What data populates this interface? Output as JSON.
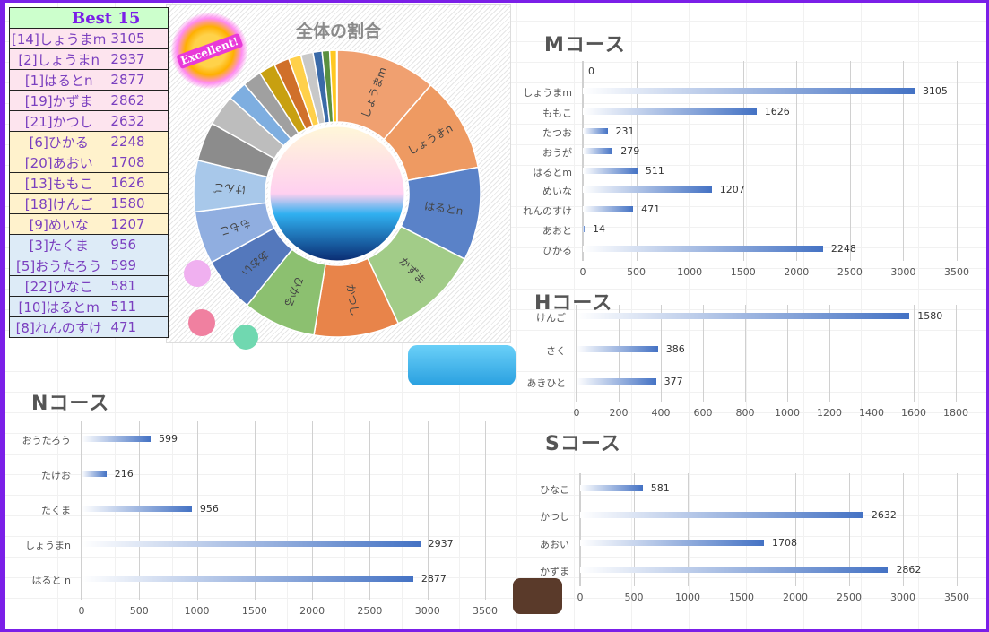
{
  "best": {
    "title": "Best 15",
    "rows": [
      {
        "name": "[14]しょうまm",
        "score": "3105"
      },
      {
        "name": "[2]しょうまn",
        "score": "2937"
      },
      {
        "name": "[1]はるとn",
        "score": "2877"
      },
      {
        "name": "[19]かずま",
        "score": "2862"
      },
      {
        "name": "[21]かつし",
        "score": "2632"
      },
      {
        "name": "[6]ひかる",
        "score": "2248"
      },
      {
        "name": "[20]あおい",
        "score": "1708"
      },
      {
        "name": "[13]ももこ",
        "score": "1626"
      },
      {
        "name": "[18]けんご",
        "score": "1580"
      },
      {
        "name": "[9]めいな",
        "score": "1207"
      },
      {
        "name": "[3]たくま",
        "score": "956"
      },
      {
        "name": "[5]おうたろう",
        "score": "599"
      },
      {
        "name": "[22]ひなこ",
        "score": "581"
      },
      {
        "name": "[10]はるとm",
        "score": "511"
      },
      {
        "name": "[8]れんのすけ",
        "score": "471"
      }
    ],
    "row_colors": [
      "#fde4ee",
      "#fde4ee",
      "#fde4ee",
      "#fde4ee",
      "#fde4ee",
      "#fff2cc",
      "#fff2cc",
      "#fff2cc",
      "#fff2cc",
      "#fff2cc",
      "#ddebf7",
      "#ddebf7",
      "#ddebf7",
      "#ddebf7",
      "#ddebf7"
    ]
  },
  "badge_text": "Excellent!",
  "chart_data": [
    {
      "type": "pie",
      "title": "全体の割合",
      "donut": true,
      "slices": [
        {
          "label": "しょうまm",
          "value": 3105,
          "color": "#f0a070"
        },
        {
          "label": "しょうまn",
          "value": 2937,
          "color": "#ee9a62"
        },
        {
          "label": "はるとn",
          "value": 2877,
          "color": "#5a82c8"
        },
        {
          "label": "かずま",
          "value": 2862,
          "color": "#a2cc88"
        },
        {
          "label": "かつし",
          "value": 2632,
          "color": "#e8844a"
        },
        {
          "label": "ひかる",
          "value": 2248,
          "color": "#8cc070"
        },
        {
          "label": "あおい",
          "value": 1708,
          "color": "#5478bc"
        },
        {
          "label": "ももこ",
          "value": 1626,
          "color": "#90aee0"
        },
        {
          "label": "けんご",
          "value": 1580,
          "color": "#a8c8ea"
        },
        {
          "label": "",
          "value": 1207,
          "color": "#8c8c8c"
        },
        {
          "label": "",
          "value": 956,
          "color": "#bdbdbd"
        },
        {
          "label": "",
          "value": 599,
          "color": "#7eaee0"
        },
        {
          "label": "",
          "value": 581,
          "color": "#a0a0a0"
        },
        {
          "label": "",
          "value": 511,
          "color": "#c8a010"
        },
        {
          "label": "",
          "value": 471,
          "color": "#d0702a"
        },
        {
          "label": "",
          "value": 386,
          "color": "#ffd04a"
        },
        {
          "label": "",
          "value": 377,
          "color": "#c8c8c8"
        },
        {
          "label": "",
          "value": 279,
          "color": "#3a6aa8"
        },
        {
          "label": "",
          "value": 231,
          "color": "#5a9040"
        },
        {
          "label": "",
          "value": 216,
          "color": "#ffc820"
        },
        {
          "label": "",
          "value": 14,
          "color": "#aaaaaa"
        }
      ]
    },
    {
      "type": "bar",
      "orientation": "horizontal",
      "title": "Mコース",
      "categories": [
        "",
        "しょうまm",
        "ももこ",
        "たつお",
        "おうが",
        "はるとm",
        "めいな",
        "れんのすけ",
        "あおと",
        "ひかる"
      ],
      "values": [
        0,
        3105,
        1626,
        231,
        279,
        511,
        1207,
        471,
        14,
        2248
      ],
      "xlim": [
        0,
        3500
      ],
      "ticks": [
        "0",
        "500",
        "1000",
        "1500",
        "2000",
        "2500",
        "3000",
        "3500"
      ],
      "grid": true
    },
    {
      "type": "bar",
      "orientation": "horizontal",
      "title": "Hコース",
      "categories": [
        "けんご",
        "さく",
        "あきひと"
      ],
      "values": [
        1580,
        386,
        377
      ],
      "xlim": [
        0,
        1800
      ],
      "ticks": [
        "0",
        "200",
        "400",
        "600",
        "800",
        "1000",
        "1200",
        "1400",
        "1600",
        "1800"
      ],
      "grid": true
    },
    {
      "type": "bar",
      "orientation": "horizontal",
      "title": "Nコース",
      "categories": [
        "おうたろう",
        "たけお",
        "たくま",
        "しょうまn",
        "はると n"
      ],
      "values": [
        599,
        216,
        956,
        2937,
        2877
      ],
      "xlim": [
        0,
        3500
      ],
      "ticks": [
        "0",
        "500",
        "1000",
        "1500",
        "2000",
        "2500",
        "3000",
        "3500"
      ],
      "grid": true
    },
    {
      "type": "bar",
      "orientation": "horizontal",
      "title": "Sコース",
      "categories": [
        "ひなこ",
        "かつし",
        "あおい",
        "かずま"
      ],
      "values": [
        581,
        2632,
        1708,
        2862
      ],
      "xlim": [
        0,
        3500
      ],
      "ticks": [
        "0",
        "500",
        "1000",
        "1500",
        "2000",
        "2500",
        "3000",
        "3500"
      ],
      "grid": true
    }
  ],
  "colors": {
    "frame": "#7b1fe8",
    "bar": "#4472c4",
    "header": "#ccffcc"
  }
}
